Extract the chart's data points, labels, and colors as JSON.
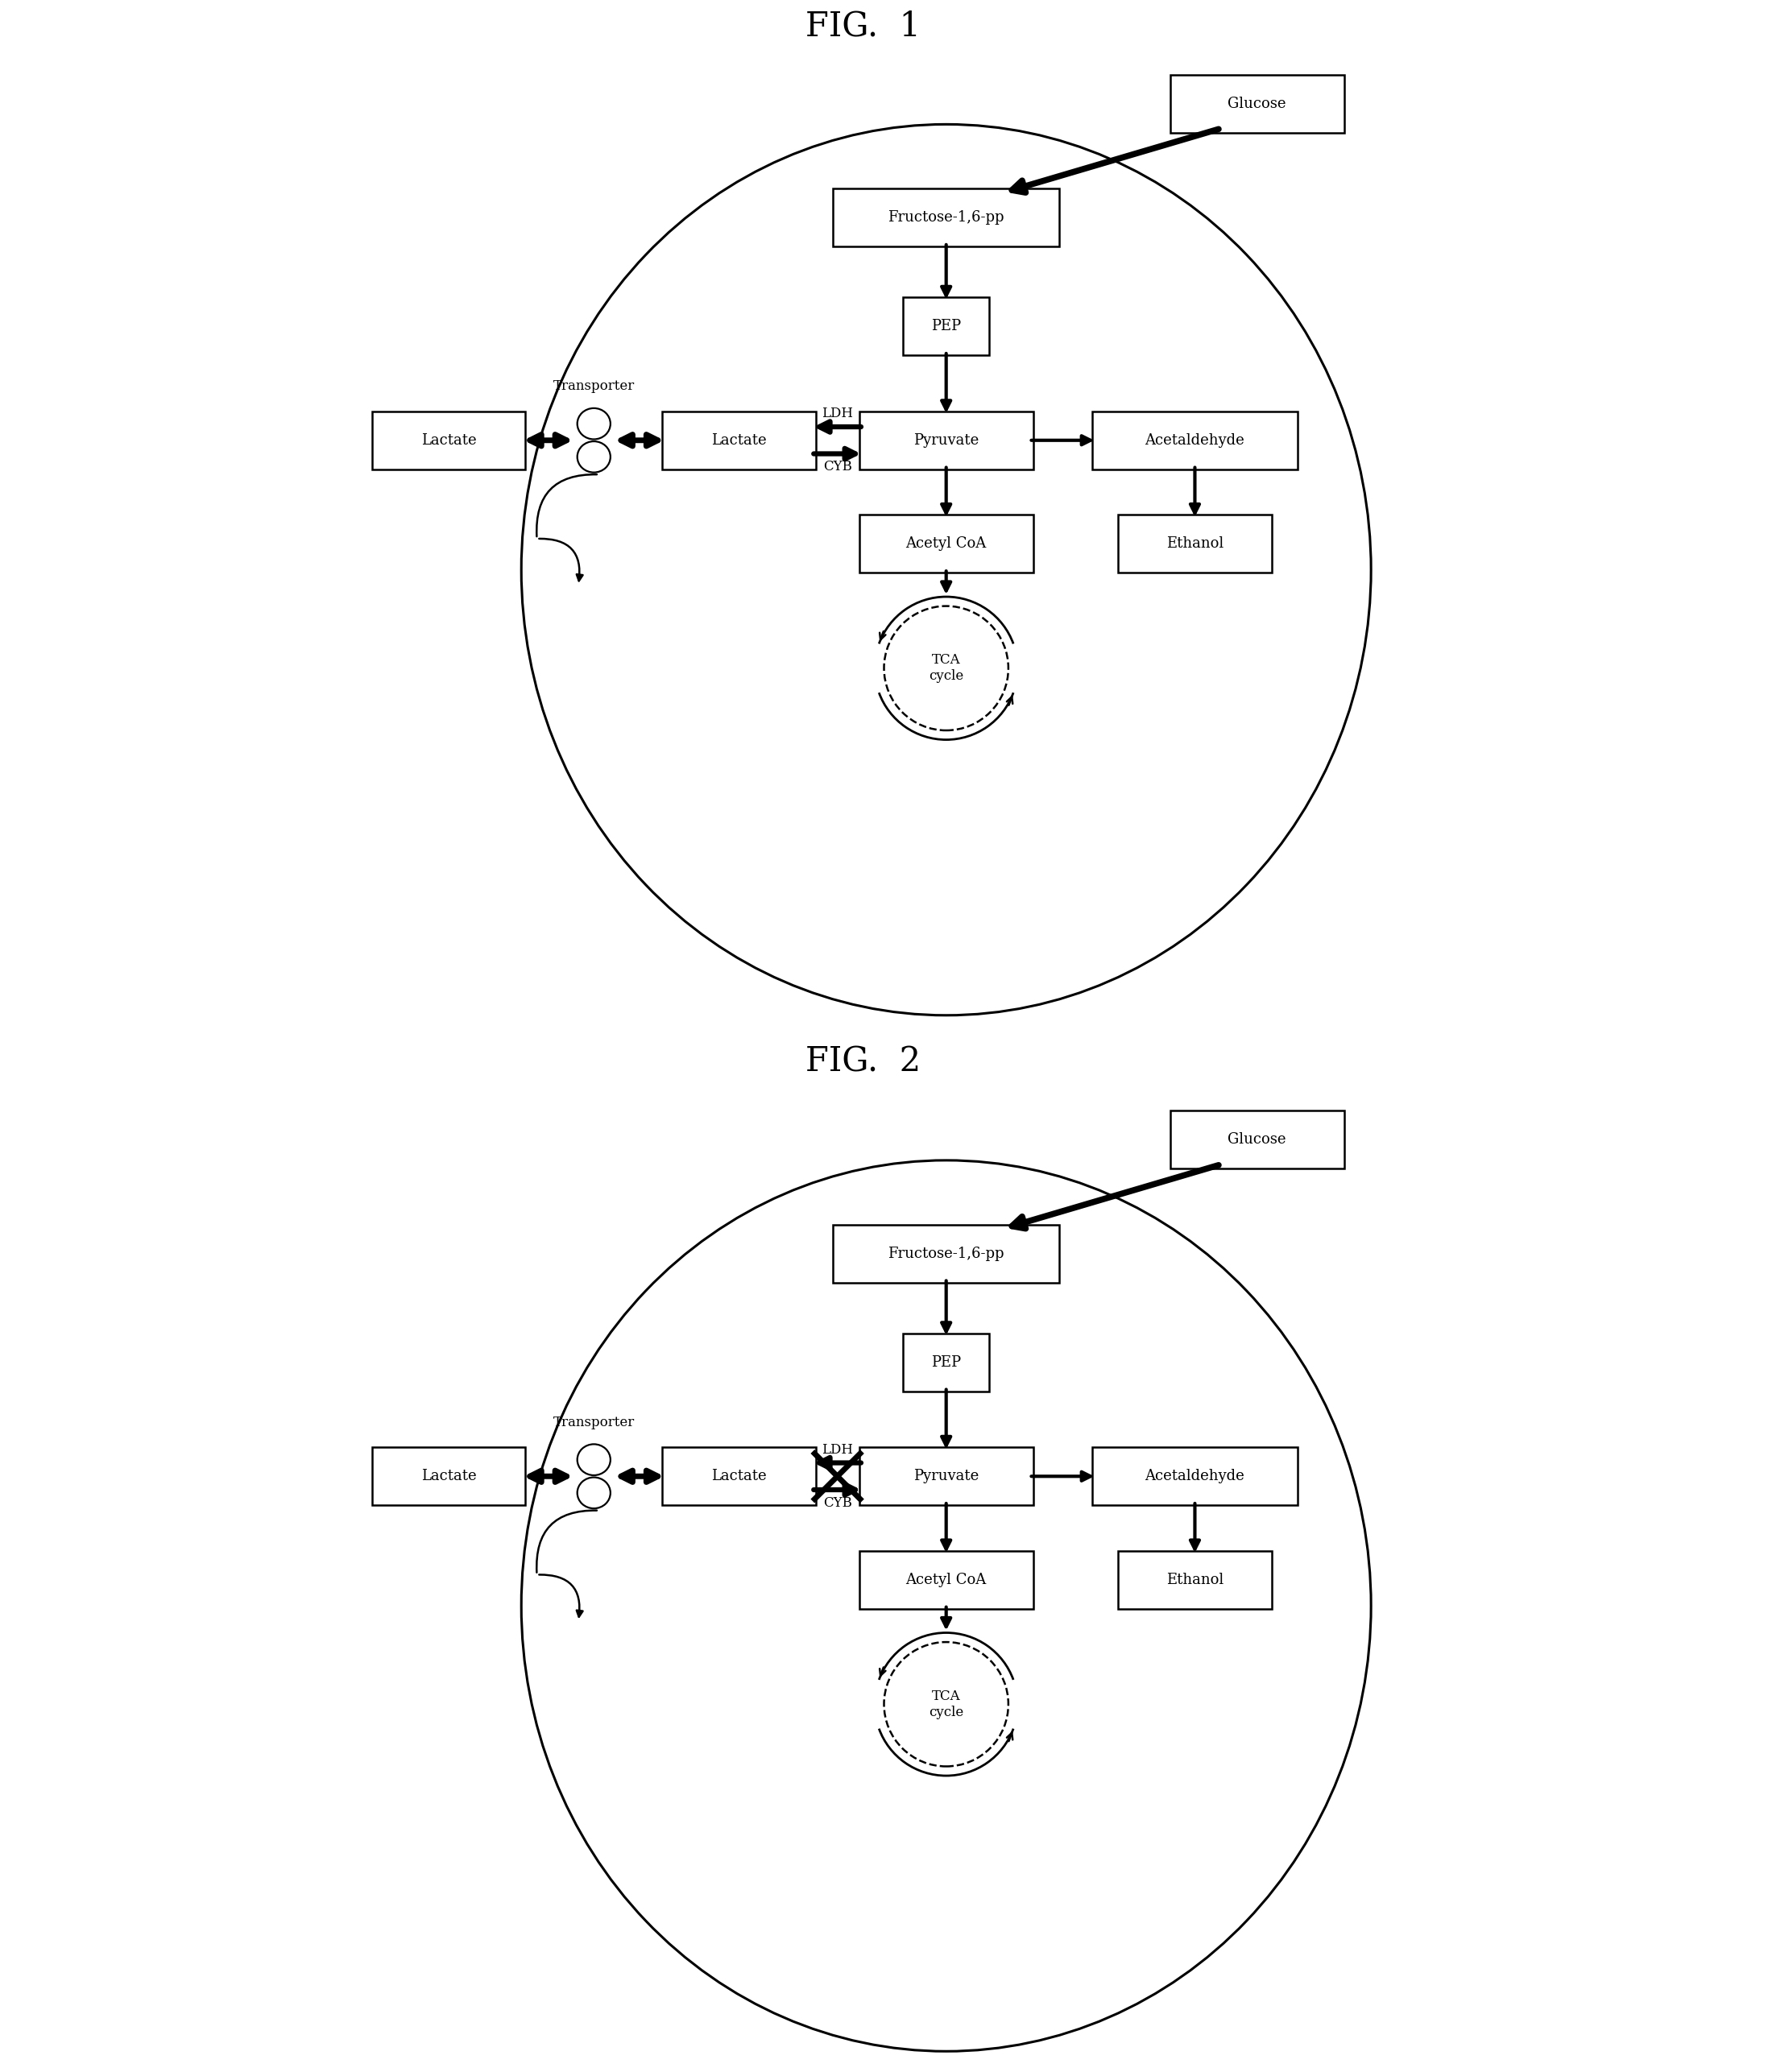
{
  "fig1_title": "FIG.  1",
  "fig2_title": "FIG.  2",
  "bg_color": "#ffffff",
  "nodes": {
    "glucose": "Glucose",
    "fructose": "Fructose-1,6-pp",
    "pep": "PEP",
    "pyruvate": "Pyruvate",
    "acetaldehyde": "Acetaldehyde",
    "ethanol": "Ethanol",
    "acetyl_coa": "Acetyl CoA",
    "tca": "TCA\ncycle",
    "lactate_in": "Lactate",
    "lactate_out": "Lactate",
    "transporter": "Transporter",
    "ldh": "LDH",
    "cyb": "CYB"
  }
}
